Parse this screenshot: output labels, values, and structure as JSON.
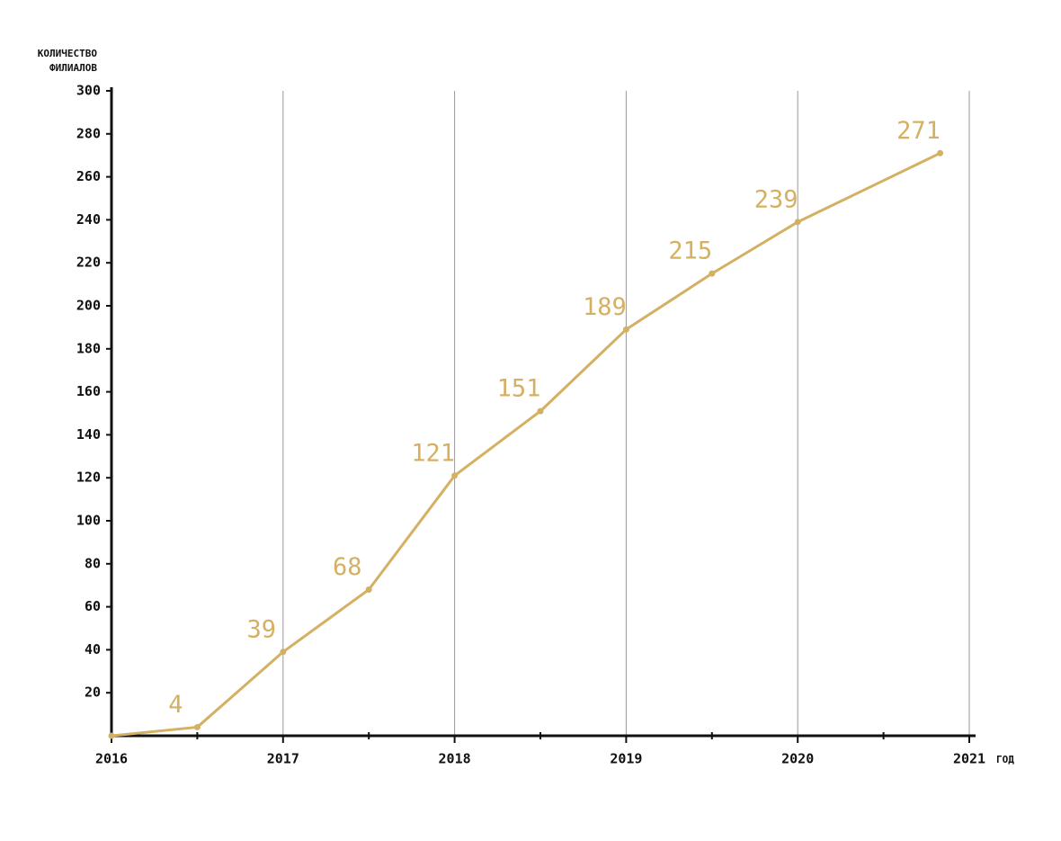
{
  "chart_data": {
    "type": "line",
    "y_label": [
      "КОЛИЧЕСТВО",
      "ФИЛИАЛОВ"
    ],
    "x_label": "ГОД",
    "x": [
      2016,
      2016.5,
      2017,
      2017.5,
      2018,
      2018.5,
      2019,
      2019.5,
      2020,
      2020.83
    ],
    "series": [
      {
        "color": "#d4b062",
        "values": [
          0,
          4,
          39,
          68,
          121,
          151,
          189,
          215,
          239,
          271
        ],
        "value_labels": [
          null,
          "4",
          "39",
          "68",
          "121",
          "151",
          "189",
          "215",
          "239",
          "271"
        ]
      }
    ],
    "xlim": [
      2016,
      2021
    ],
    "xticks": [
      2016,
      2017,
      2018,
      2019,
      2020,
      2021
    ],
    "x_minor_ticks": [
      2016.5,
      2017.5,
      2018.5,
      2019.5,
      2020.5
    ],
    "ylim": [
      0,
      300
    ],
    "yticks": [
      20,
      40,
      60,
      80,
      100,
      120,
      140,
      160,
      180,
      200,
      220,
      240,
      260,
      280,
      300
    ],
    "grid": "x"
  }
}
